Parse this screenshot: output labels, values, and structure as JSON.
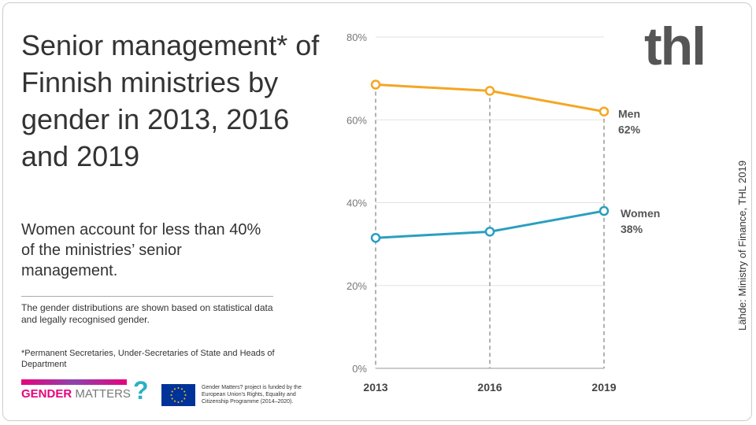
{
  "title": "Senior management* of Finnish ministries by gender in 2013, 2016 and 2019",
  "subtitle": "Women account for less than 40% of the ministries’ senior management.",
  "note": "The gender distributions are shown based on statistical data and legally recognised gender.",
  "footnote": "*Permanent Secretaries, Under-Secretaries of State and Heads of Department",
  "logo_gender_matters": "GENDER MATTERS?",
  "logo_gm_bold": "GENDER",
  "logo_gm_light": " MATTERS",
  "eu_text": "Gender Matters? project is funded by the European Union’s Rights, Equality and Citizenship Programme (2014–2020).",
  "logo_thl": "thl",
  "source": "Lähde: Ministry of Finance, THL 2019",
  "chart_data": {
    "type": "line",
    "x": [
      "2013",
      "2016",
      "2019"
    ],
    "ylim": [
      0,
      80
    ],
    "yticks": [
      "0%",
      "20%",
      "40%",
      "60%",
      "80%"
    ],
    "grid": true,
    "series": [
      {
        "name": "Men",
        "values": [
          68.5,
          67,
          62
        ],
        "end_label": "62%",
        "color": "#f5a623"
      },
      {
        "name": "Women",
        "values": [
          31.5,
          33,
          38
        ],
        "end_label": "38%",
        "color": "#2a9fc0"
      }
    ]
  }
}
